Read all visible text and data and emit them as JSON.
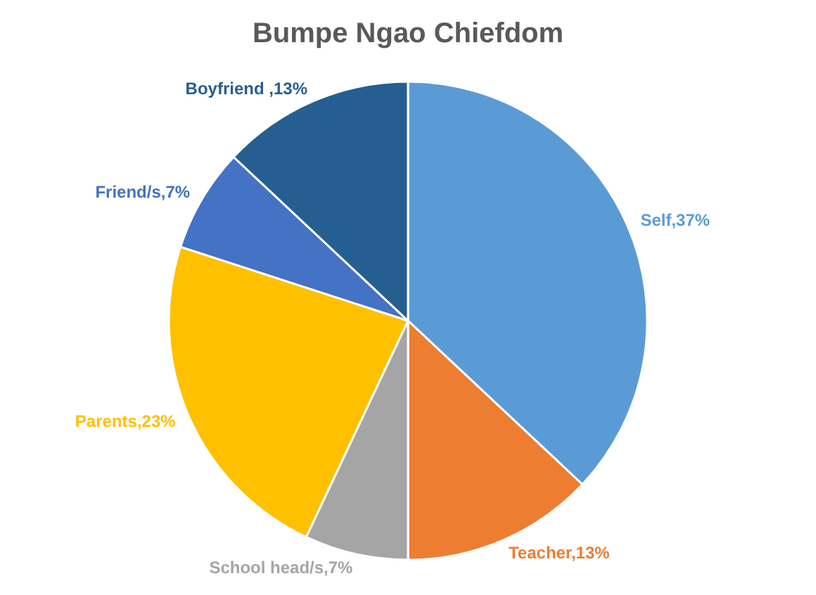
{
  "chart_data": {
    "type": "pie",
    "title": "Bumpe Ngao Chiefdom",
    "categories": [
      "Self",
      "Teacher",
      "School head/s",
      "Parents",
      "Friend/s",
      "Boyfriend "
    ],
    "values": [
      37,
      13,
      7,
      23,
      7,
      13
    ],
    "colors": [
      "#5b9bd5",
      "#ed7d31",
      "#a5a5a5",
      "#ffc000",
      "#4472c4",
      "#255e91"
    ],
    "value_labels": [
      "37%",
      "13%",
      "7%",
      "23%",
      "7%",
      "13%"
    ]
  }
}
